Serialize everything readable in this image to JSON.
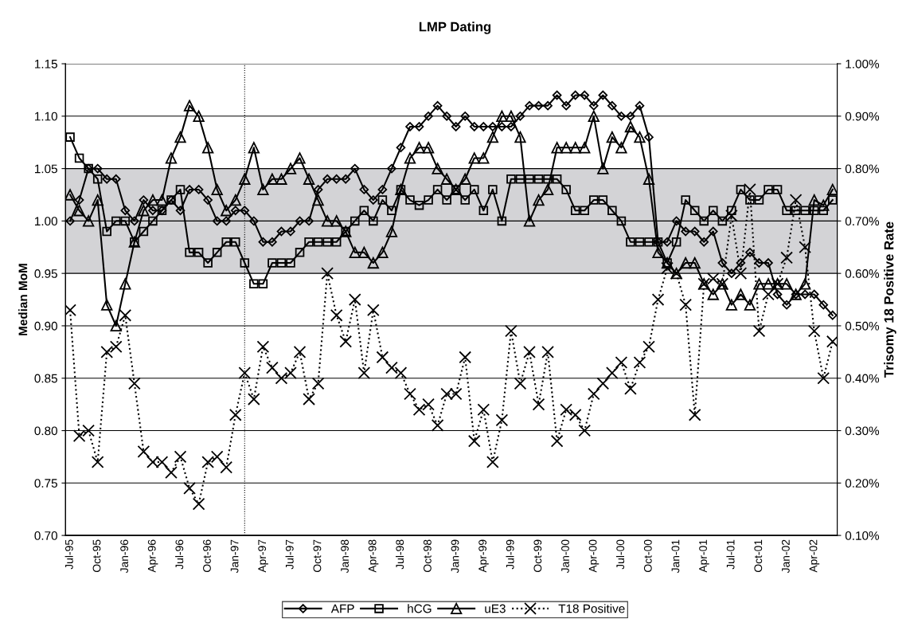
{
  "chart_data": {
    "type": "line",
    "title": "LMP Dating",
    "ylabel": "Median MoM",
    "y2label": "Trisomy 18 Positive Rate",
    "categories": [
      "Jul-95",
      null,
      null,
      "Oct-95",
      null,
      null,
      "Jan-96",
      null,
      null,
      "Apr-96",
      null,
      null,
      "Jul-96",
      null,
      null,
      "Oct-96",
      null,
      null,
      "Jan-97",
      null,
      null,
      "Apr-97",
      null,
      null,
      "Jul-97",
      null,
      null,
      "Oct-97",
      null,
      null,
      "Jan-98",
      null,
      null,
      "Apr-98",
      null,
      null,
      "Jul-98",
      null,
      null,
      "Oct-98",
      null,
      null,
      "Jan-99",
      null,
      null,
      "Apr-99",
      null,
      null,
      "Jul-99",
      null,
      null,
      "Oct-99",
      null,
      null,
      "Jan-00",
      null,
      null,
      "Apr-00",
      null,
      null,
      "Jul-00",
      null,
      null,
      "Oct-00",
      null,
      null,
      "Jan-01",
      null,
      null,
      "Apr-01",
      null,
      null,
      "Jul-01",
      null,
      null,
      "Oct-01",
      null,
      null,
      "Jan-02",
      null,
      null,
      "Apr-02",
      null,
      null
    ],
    "series": [
      {
        "name": "AFP",
        "color": "#000000",
        "marker": "diamond",
        "line_style": "solid",
        "values": [
          1.0,
          1.02,
          1.05,
          1.05,
          1.04,
          1.04,
          1.01,
          1.0,
          1.02,
          1.01,
          1.01,
          1.02,
          1.01,
          1.03,
          1.03,
          1.02,
          1.0,
          1.0,
          1.01,
          1.01,
          1.0,
          0.98,
          0.98,
          0.99,
          0.99,
          1.0,
          1.0,
          1.03,
          1.04,
          1.04,
          1.04,
          1.05,
          1.03,
          1.02,
          1.03,
          1.05,
          1.07,
          1.09,
          1.09,
          1.1,
          1.11,
          1.1,
          1.09,
          1.1,
          1.09,
          1.09,
          1.09,
          1.09,
          1.09,
          1.1,
          1.11,
          1.11,
          1.11,
          1.12,
          1.11,
          1.12,
          1.12,
          1.11,
          1.12,
          1.11,
          1.1,
          1.1,
          1.11,
          1.08,
          0.98,
          0.98,
          1.0,
          0.99,
          0.99,
          0.98,
          0.99,
          0.96,
          0.95,
          0.96,
          0.97,
          0.96,
          0.96,
          0.93,
          0.92,
          0.93,
          0.93,
          0.93,
          0.92,
          0.91
        ]
      },
      {
        "name": "hCG",
        "color": "#000000",
        "marker": "square",
        "line_style": "solid",
        "values": [
          1.08,
          1.06,
          1.05,
          1.04,
          0.99,
          1.0,
          1.0,
          0.98,
          0.99,
          1.0,
          1.01,
          1.02,
          1.03,
          0.97,
          0.97,
          0.96,
          0.97,
          0.98,
          0.98,
          0.96,
          0.94,
          0.94,
          0.96,
          0.96,
          0.96,
          0.97,
          0.98,
          0.98,
          0.98,
          0.98,
          0.99,
          1.0,
          1.01,
          1.0,
          1.02,
          1.01,
          1.03,
          1.02,
          1.015,
          1.02,
          1.03,
          1.02,
          1.03,
          1.02,
          1.03,
          1.01,
          1.03,
          1.0,
          1.04,
          1.04,
          1.04,
          1.04,
          1.04,
          1.04,
          1.03,
          1.01,
          1.01,
          1.02,
          1.02,
          1.01,
          1.0,
          0.98,
          0.98,
          0.98,
          0.98,
          0.96,
          0.98,
          1.02,
          1.01,
          1.0,
          1.01,
          1.0,
          1.01,
          1.03,
          1.02,
          1.02,
          1.03,
          1.03,
          1.01,
          1.01,
          1.01,
          1.01,
          1.01,
          1.02
        ]
      },
      {
        "name": "uE3",
        "color": "#000000",
        "marker": "triangle",
        "line_style": "solid",
        "values": [
          1.025,
          1.01,
          1.0,
          1.02,
          0.92,
          0.9,
          0.94,
          0.98,
          1.01,
          1.02,
          1.02,
          1.06,
          1.08,
          1.11,
          1.1,
          1.07,
          1.03,
          1.01,
          1.02,
          1.04,
          1.07,
          1.03,
          1.04,
          1.04,
          1.05,
          1.06,
          1.04,
          1.02,
          1.0,
          1.0,
          0.99,
          0.97,
          0.97,
          0.96,
          0.97,
          0.99,
          1.03,
          1.06,
          1.07,
          1.07,
          1.05,
          1.04,
          1.03,
          1.04,
          1.06,
          1.06,
          1.08,
          1.1,
          1.1,
          1.08,
          1.0,
          1.02,
          1.03,
          1.07,
          1.07,
          1.07,
          1.07,
          1.1,
          1.05,
          1.08,
          1.07,
          1.09,
          1.08,
          1.04,
          0.97,
          0.96,
          0.95,
          0.96,
          0.96,
          0.94,
          0.93,
          0.94,
          0.92,
          0.93,
          0.92,
          0.94,
          0.94,
          0.94,
          0.94,
          0.93,
          0.94,
          1.02,
          1.015,
          1.03
        ]
      },
      {
        "name": "T18 Positive",
        "color": "#000000",
        "marker": "cross",
        "line_style": "dotted",
        "axis": "y2",
        "values": [
          0.53,
          0.29,
          0.3,
          0.24,
          0.45,
          0.46,
          0.52,
          0.39,
          0.26,
          0.24,
          0.24,
          0.22,
          0.25,
          0.19,
          0.16,
          0.24,
          0.25,
          0.23,
          0.33,
          0.41,
          0.36,
          0.46,
          0.42,
          0.4,
          0.41,
          0.45,
          0.36,
          0.39,
          0.6,
          0.52,
          0.47,
          0.55,
          0.41,
          0.53,
          0.44,
          0.42,
          0.41,
          0.37,
          0.34,
          0.35,
          0.31,
          0.37,
          0.37,
          0.44,
          0.28,
          0.34,
          0.24,
          0.32,
          0.49,
          0.39,
          0.45,
          0.35,
          0.45,
          0.28,
          0.34,
          0.33,
          0.3,
          0.37,
          0.39,
          0.41,
          0.43,
          0.38,
          0.43,
          0.46,
          0.55,
          0.61,
          0.6,
          0.54,
          0.33,
          0.58,
          0.59,
          0.58,
          0.71,
          0.6,
          0.76,
          0.49,
          0.56,
          0.58,
          0.63,
          0.74,
          0.65,
          0.49,
          0.4,
          0.47
        ]
      }
    ],
    "ylim": [
      0.7,
      1.15
    ],
    "yticks": [
      {
        "value": 0.7,
        "label": "0.70"
      },
      {
        "value": 0.75,
        "label": "0.75"
      },
      {
        "value": 0.8,
        "label": "0.80"
      },
      {
        "value": 0.85,
        "label": "0.85"
      },
      {
        "value": 0.9,
        "label": "0.90"
      },
      {
        "value": 0.95,
        "label": "0.95"
      },
      {
        "value": 1.0,
        "label": "1.00"
      },
      {
        "value": 1.05,
        "label": "1.05"
      },
      {
        "value": 1.1,
        "label": "1.10"
      },
      {
        "value": 1.15,
        "label": "1.15"
      }
    ],
    "y2lim": [
      0.1,
      1.0
    ],
    "y2ticks": [
      {
        "value": 0.1,
        "label": "0.10%"
      },
      {
        "value": 0.2,
        "label": "0.20%"
      },
      {
        "value": 0.3,
        "label": "0.30%"
      },
      {
        "value": 0.4,
        "label": "0.40%"
      },
      {
        "value": 0.5,
        "label": "0.50%"
      },
      {
        "value": 0.6,
        "label": "0.60%"
      },
      {
        "value": 0.7,
        "label": "0.70%"
      },
      {
        "value": 0.8,
        "label": "0.80%"
      },
      {
        "value": 0.9,
        "label": "0.90%"
      },
      {
        "value": 1.0,
        "label": "1.00%"
      }
    ],
    "bands": [
      {
        "axis": "y",
        "from": 0.95,
        "to": 1.05,
        "color": "#d3d3d6"
      }
    ],
    "grid": "y",
    "legend": "bottom"
  }
}
